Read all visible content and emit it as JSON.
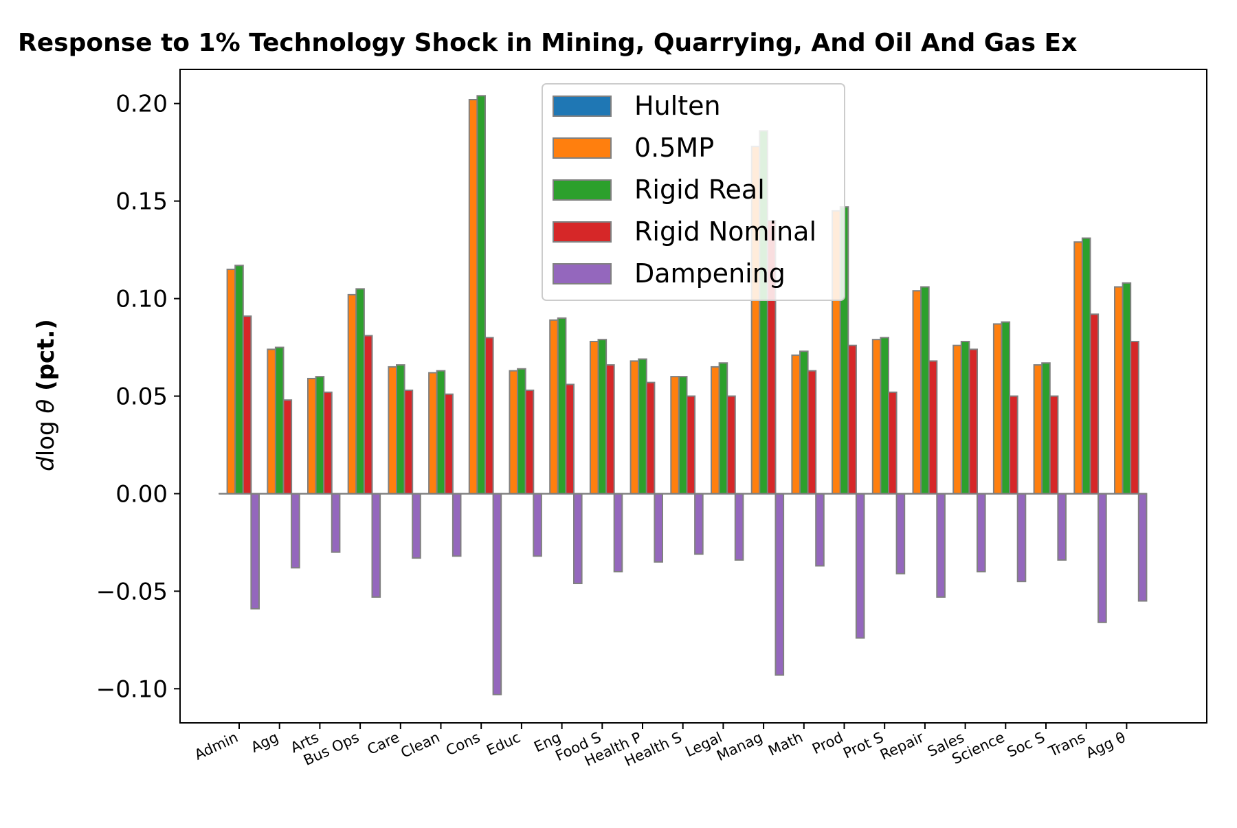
{
  "chart_data": {
    "type": "bar",
    "title": "Response to 1% Technology Shock in Mining, Quarrying, And Oil And Gas Ex",
    "ylabel": {
      "math": "dlog θ",
      "unit": "(pct.)"
    },
    "xlabel": "",
    "ylim": [
      -0.1175,
      0.2175
    ],
    "yticks": [
      -0.1,
      -0.05,
      0.0,
      0.05,
      0.1,
      0.15,
      0.2
    ],
    "ytick_labels": [
      "−0.10",
      "−0.05",
      "0.00",
      "0.05",
      "0.10",
      "0.15",
      "0.20"
    ],
    "legend_position": "upper center",
    "categories": [
      "Admin",
      "Agg",
      "Arts",
      "Bus Ops",
      "Care",
      "Clean",
      "Cons",
      "Educ",
      "Eng",
      "Food S",
      "Health P",
      "Health S",
      "Legal",
      "Manag",
      "Math",
      "Prod",
      "Prot S",
      "Repair",
      "Sales",
      "Science",
      "Soc S",
      "Trans",
      "Agg θ"
    ],
    "series": [
      {
        "name": "Hulten",
        "color": "#1f77b4",
        "values": [
          0,
          0,
          0,
          0,
          0,
          0,
          0,
          0,
          0,
          0,
          0,
          0,
          0,
          0,
          0,
          0,
          0,
          0,
          0,
          0,
          0,
          0,
          0
        ]
      },
      {
        "name": "0.5MP",
        "color": "#ff7f0e",
        "values": [
          0.115,
          0.074,
          0.059,
          0.102,
          0.065,
          0.062,
          0.202,
          0.063,
          0.089,
          0.078,
          0.068,
          0.06,
          0.065,
          0.178,
          0.071,
          0.145,
          0.079,
          0.104,
          0.076,
          0.087,
          0.066,
          0.129,
          0.106
        ]
      },
      {
        "name": "Rigid Real",
        "color": "#2ca02c",
        "values": [
          0.117,
          0.075,
          0.06,
          0.105,
          0.066,
          0.063,
          0.204,
          0.064,
          0.09,
          0.079,
          0.069,
          0.06,
          0.067,
          0.186,
          0.073,
          0.147,
          0.08,
          0.106,
          0.078,
          0.088,
          0.067,
          0.131,
          0.108
        ]
      },
      {
        "name": "Rigid Nominal",
        "color": "#d62728",
        "values": [
          0.091,
          0.048,
          0.052,
          0.081,
          0.053,
          0.051,
          0.08,
          0.053,
          0.056,
          0.066,
          0.057,
          0.05,
          0.05,
          0.14,
          0.063,
          0.076,
          0.052,
          0.068,
          0.074,
          0.05,
          0.05,
          0.092,
          0.078
        ]
      },
      {
        "name": "Dampening",
        "color": "#9467bd",
        "values": [
          -0.059,
          -0.038,
          -0.03,
          -0.053,
          -0.033,
          -0.032,
          -0.103,
          -0.032,
          -0.046,
          -0.04,
          -0.035,
          -0.031,
          -0.034,
          -0.093,
          -0.037,
          -0.074,
          -0.041,
          -0.053,
          -0.04,
          -0.045,
          -0.034,
          -0.066,
          -0.055
        ]
      }
    ]
  }
}
